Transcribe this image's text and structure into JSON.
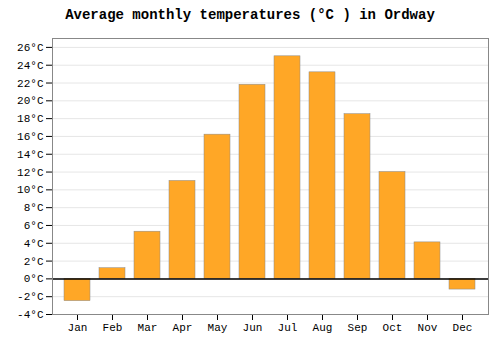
{
  "chart_data": {
    "type": "bar",
    "title": "Average monthly temperatures (°C ) in Ordway",
    "categories": [
      "Jan",
      "Feb",
      "Mar",
      "Apr",
      "May",
      "Jun",
      "Jul",
      "Aug",
      "Sep",
      "Oct",
      "Nov",
      "Dec"
    ],
    "values": [
      -2.5,
      1.2,
      5.3,
      11.0,
      16.2,
      21.8,
      25.0,
      23.2,
      18.5,
      12.0,
      4.1,
      -1.2
    ],
    "color": "#FFA726",
    "ylim": [
      -4,
      27
    ],
    "yticks": [
      {
        "value": -4,
        "label": "-4°C"
      },
      {
        "value": -2,
        "label": "-2°C"
      },
      {
        "value": 0,
        "label": "0°C"
      },
      {
        "value": 2,
        "label": "2°C"
      },
      {
        "value": 4,
        "label": "4°C"
      },
      {
        "value": 6,
        "label": "6°C"
      },
      {
        "value": 8,
        "label": "8°C"
      },
      {
        "value": 10,
        "label": "10°C"
      },
      {
        "value": 12,
        "label": "12°C"
      },
      {
        "value": 14,
        "label": "14°C"
      },
      {
        "value": 16,
        "label": "16°C"
      },
      {
        "value": 18,
        "label": "18°C"
      },
      {
        "value": 20,
        "label": "20°C"
      },
      {
        "value": 22,
        "label": "22°C"
      },
      {
        "value": 24,
        "label": "24°C"
      },
      {
        "value": 26,
        "label": "26°C"
      }
    ],
    "grid": true
  }
}
